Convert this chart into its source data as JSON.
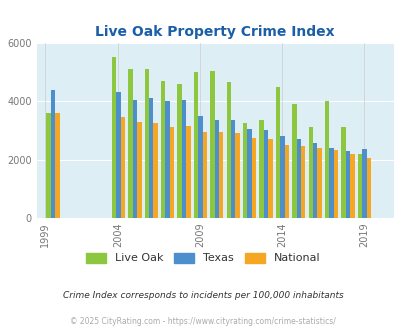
{
  "title": "Live Oak Property Crime Index",
  "subtitle": "Crime Index corresponds to incidents per 100,000 inhabitants",
  "footer": "© 2025 CityRating.com - https://www.cityrating.com/crime-statistics/",
  "years": [
    2000,
    2004,
    2005,
    2006,
    2007,
    2008,
    2009,
    2010,
    2011,
    2012,
    2013,
    2014,
    2015,
    2016,
    2017,
    2018,
    2019,
    2020
  ],
  "live_oak": [
    3600,
    5500,
    5100,
    5100,
    4700,
    4600,
    5000,
    5050,
    4650,
    3250,
    3350,
    4500,
    3900,
    3100,
    4000,
    3100,
    2200,
    0
  ],
  "texas": [
    4400,
    4300,
    4050,
    4100,
    4000,
    4050,
    3500,
    3350,
    3350,
    3050,
    3000,
    2820,
    2700,
    2560,
    2380,
    2300,
    2350,
    0
  ],
  "national": [
    3600,
    3450,
    3300,
    3250,
    3100,
    3150,
    2950,
    2950,
    2900,
    2750,
    2700,
    2500,
    2450,
    2380,
    2320,
    2200,
    2050,
    0
  ],
  "colors": {
    "live_oak": "#8dc63f",
    "texas": "#4d8fcc",
    "national": "#f5a623",
    "background": "#deeef5",
    "title": "#1a5fa8"
  },
  "ylim": [
    0,
    6000
  ],
  "yticks": [
    0,
    2000,
    4000,
    6000
  ],
  "xtick_positions": [
    1999.5,
    2004,
    2009,
    2014,
    2019
  ],
  "xtick_labels": [
    "1999",
    "2004",
    "2009",
    "2014",
    "2019"
  ],
  "legend_labels": [
    "Live Oak",
    "Texas",
    "National"
  ]
}
